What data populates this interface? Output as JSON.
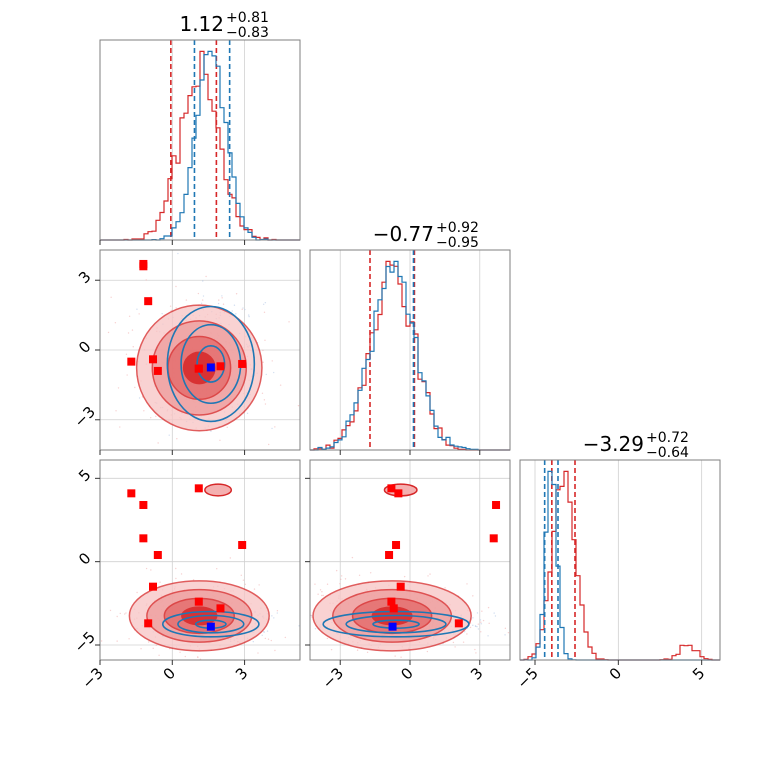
{
  "chart_data": {
    "type": "corner",
    "parameters": [
      "p1",
      "p2",
      "p3"
    ],
    "titles": [
      {
        "median": "1.12",
        "plus": "+0.81",
        "minus": "−0.83"
      },
      {
        "median": "−0.77",
        "plus": "+0.92",
        "minus": "−0.95"
      },
      {
        "median": "−3.29",
        "plus": "+0.72",
        "minus": "−0.64"
      }
    ],
    "axes": {
      "p1": {
        "range": [
          -3.0,
          5.3
        ],
        "ticks": [
          -3,
          0,
          3
        ],
        "tick_labels": [
          "−3",
          "0",
          "3"
        ]
      },
      "p2": {
        "range": [
          -4.3,
          4.3
        ],
        "ticks": [
          -3,
          0,
          3
        ],
        "tick_labels": [
          "−3",
          "0",
          "3"
        ]
      },
      "p3": {
        "range": [
          -5.9,
          6.1
        ],
        "ticks": [
          -5,
          0,
          5
        ],
        "tick_labels": [
          "−5",
          "0",
          "5"
        ]
      }
    },
    "series": [
      {
        "color": "#d62728",
        "quantiles": {
          "p1": [
            -0.06,
            1.83
          ],
          "p2": [
            -1.72,
            0.19
          ],
          "p3": [
            -3.99,
            -2.6
          ]
        },
        "gauss": {
          "p1": [
            1.12,
            0.82
          ],
          "p2": [
            -0.77,
            0.94
          ],
          "p3": [
            -3.29,
            0.68
          ]
        },
        "outlier": {
          "p3": [
            4.2,
            0.5,
            0.06
          ]
        },
        "contours_12": {
          "cx": 1.12,
          "cy": -0.77,
          "sx": 1.3,
          "sy": 1.35
        },
        "contours_13": {
          "cx": 1.12,
          "cy": -3.25,
          "sx": 1.45,
          "sy": 1.05
        },
        "contours_23": {
          "cx": -0.77,
          "cy": -3.25,
          "sx": 1.7,
          "sy": 1.05
        },
        "island_13": {
          "cx": 1.9,
          "cy": 4.3,
          "sx": 0.55,
          "sy": 0.35
        },
        "island_23": {
          "cx": -0.4,
          "cy": 4.3,
          "sx": 0.7,
          "sy": 0.35
        }
      },
      {
        "color": "#1f77b4",
        "quantiles": {
          "p1": [
            0.92,
            2.38
          ],
          "p2": [
            0.15
          ],
          "p3": [
            -4.42,
            -3.62
          ]
        },
        "gauss": {
          "p1": [
            1.6,
            0.62
          ],
          "p2": [
            -0.75,
            0.94
          ],
          "p3": [
            -4.02,
            0.33
          ]
        },
        "contours_12": {
          "cx": 1.6,
          "cy": -0.6,
          "sx": 0.95,
          "sy": 1.3
        },
        "contours_13": {
          "cx": 1.6,
          "cy": -3.75,
          "sx": 1.05,
          "sy": 0.4
        },
        "contours_23": {
          "cx": -0.6,
          "cy": -3.75,
          "sx": 1.65,
          "sy": 0.4
        }
      }
    ],
    "markers": {
      "red": [
        [
          -1.7,
          -0.5,
          4.1
        ],
        [
          -1.2,
          3.6,
          1.4
        ],
        [
          -1.0,
          2.1,
          -3.7
        ],
        [
          -1.2,
          3.7,
          3.4
        ],
        [
          -0.8,
          -0.4,
          -1.5
        ],
        [
          -0.6,
          -0.9,
          0.4
        ],
        [
          1.1,
          -0.8,
          -2.4
        ],
        [
          2.9,
          -0.6,
          1.0
        ],
        [
          1.1,
          -0.8,
          4.4
        ],
        [
          2.0,
          -0.7,
          -2.8
        ]
      ],
      "blue": [
        [
          1.6,
          -0.75,
          -3.9
        ]
      ]
    },
    "grid": true,
    "legend": "none"
  }
}
